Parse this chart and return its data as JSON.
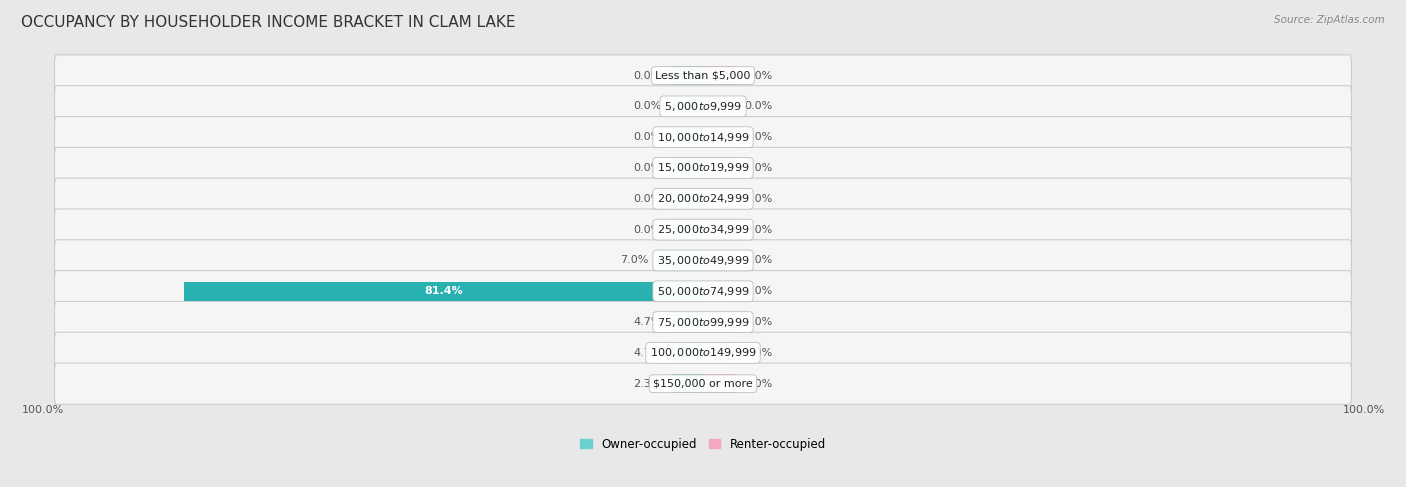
{
  "title": "OCCUPANCY BY HOUSEHOLDER INCOME BRACKET IN CLAM LAKE",
  "source": "Source: ZipAtlas.com",
  "categories": [
    "Less than $5,000",
    "$5,000 to $9,999",
    "$10,000 to $14,999",
    "$15,000 to $19,999",
    "$20,000 to $24,999",
    "$25,000 to $34,999",
    "$35,000 to $49,999",
    "$50,000 to $74,999",
    "$75,000 to $99,999",
    "$100,000 to $149,999",
    "$150,000 or more"
  ],
  "owner_values": [
    0.0,
    0.0,
    0.0,
    0.0,
    0.0,
    0.0,
    7.0,
    81.4,
    4.7,
    4.7,
    2.3
  ],
  "renter_values": [
    0.0,
    0.0,
    0.0,
    0.0,
    0.0,
    0.0,
    0.0,
    0.0,
    0.0,
    0.0,
    0.0
  ],
  "owner_color_light": "#6dcfcf",
  "owner_color_dark": "#29b0b0",
  "renter_color": "#f2a8be",
  "background_color": "#e8e8e8",
  "row_bg_color": "#f5f5f5",
  "row_border_color": "#cccccc",
  "bar_height": 0.62,
  "max_owner": 100.0,
  "max_renter": 100.0,
  "title_fontsize": 11,
  "label_fontsize": 8,
  "category_fontsize": 8,
  "legend_fontsize": 8.5,
  "source_fontsize": 7.5
}
